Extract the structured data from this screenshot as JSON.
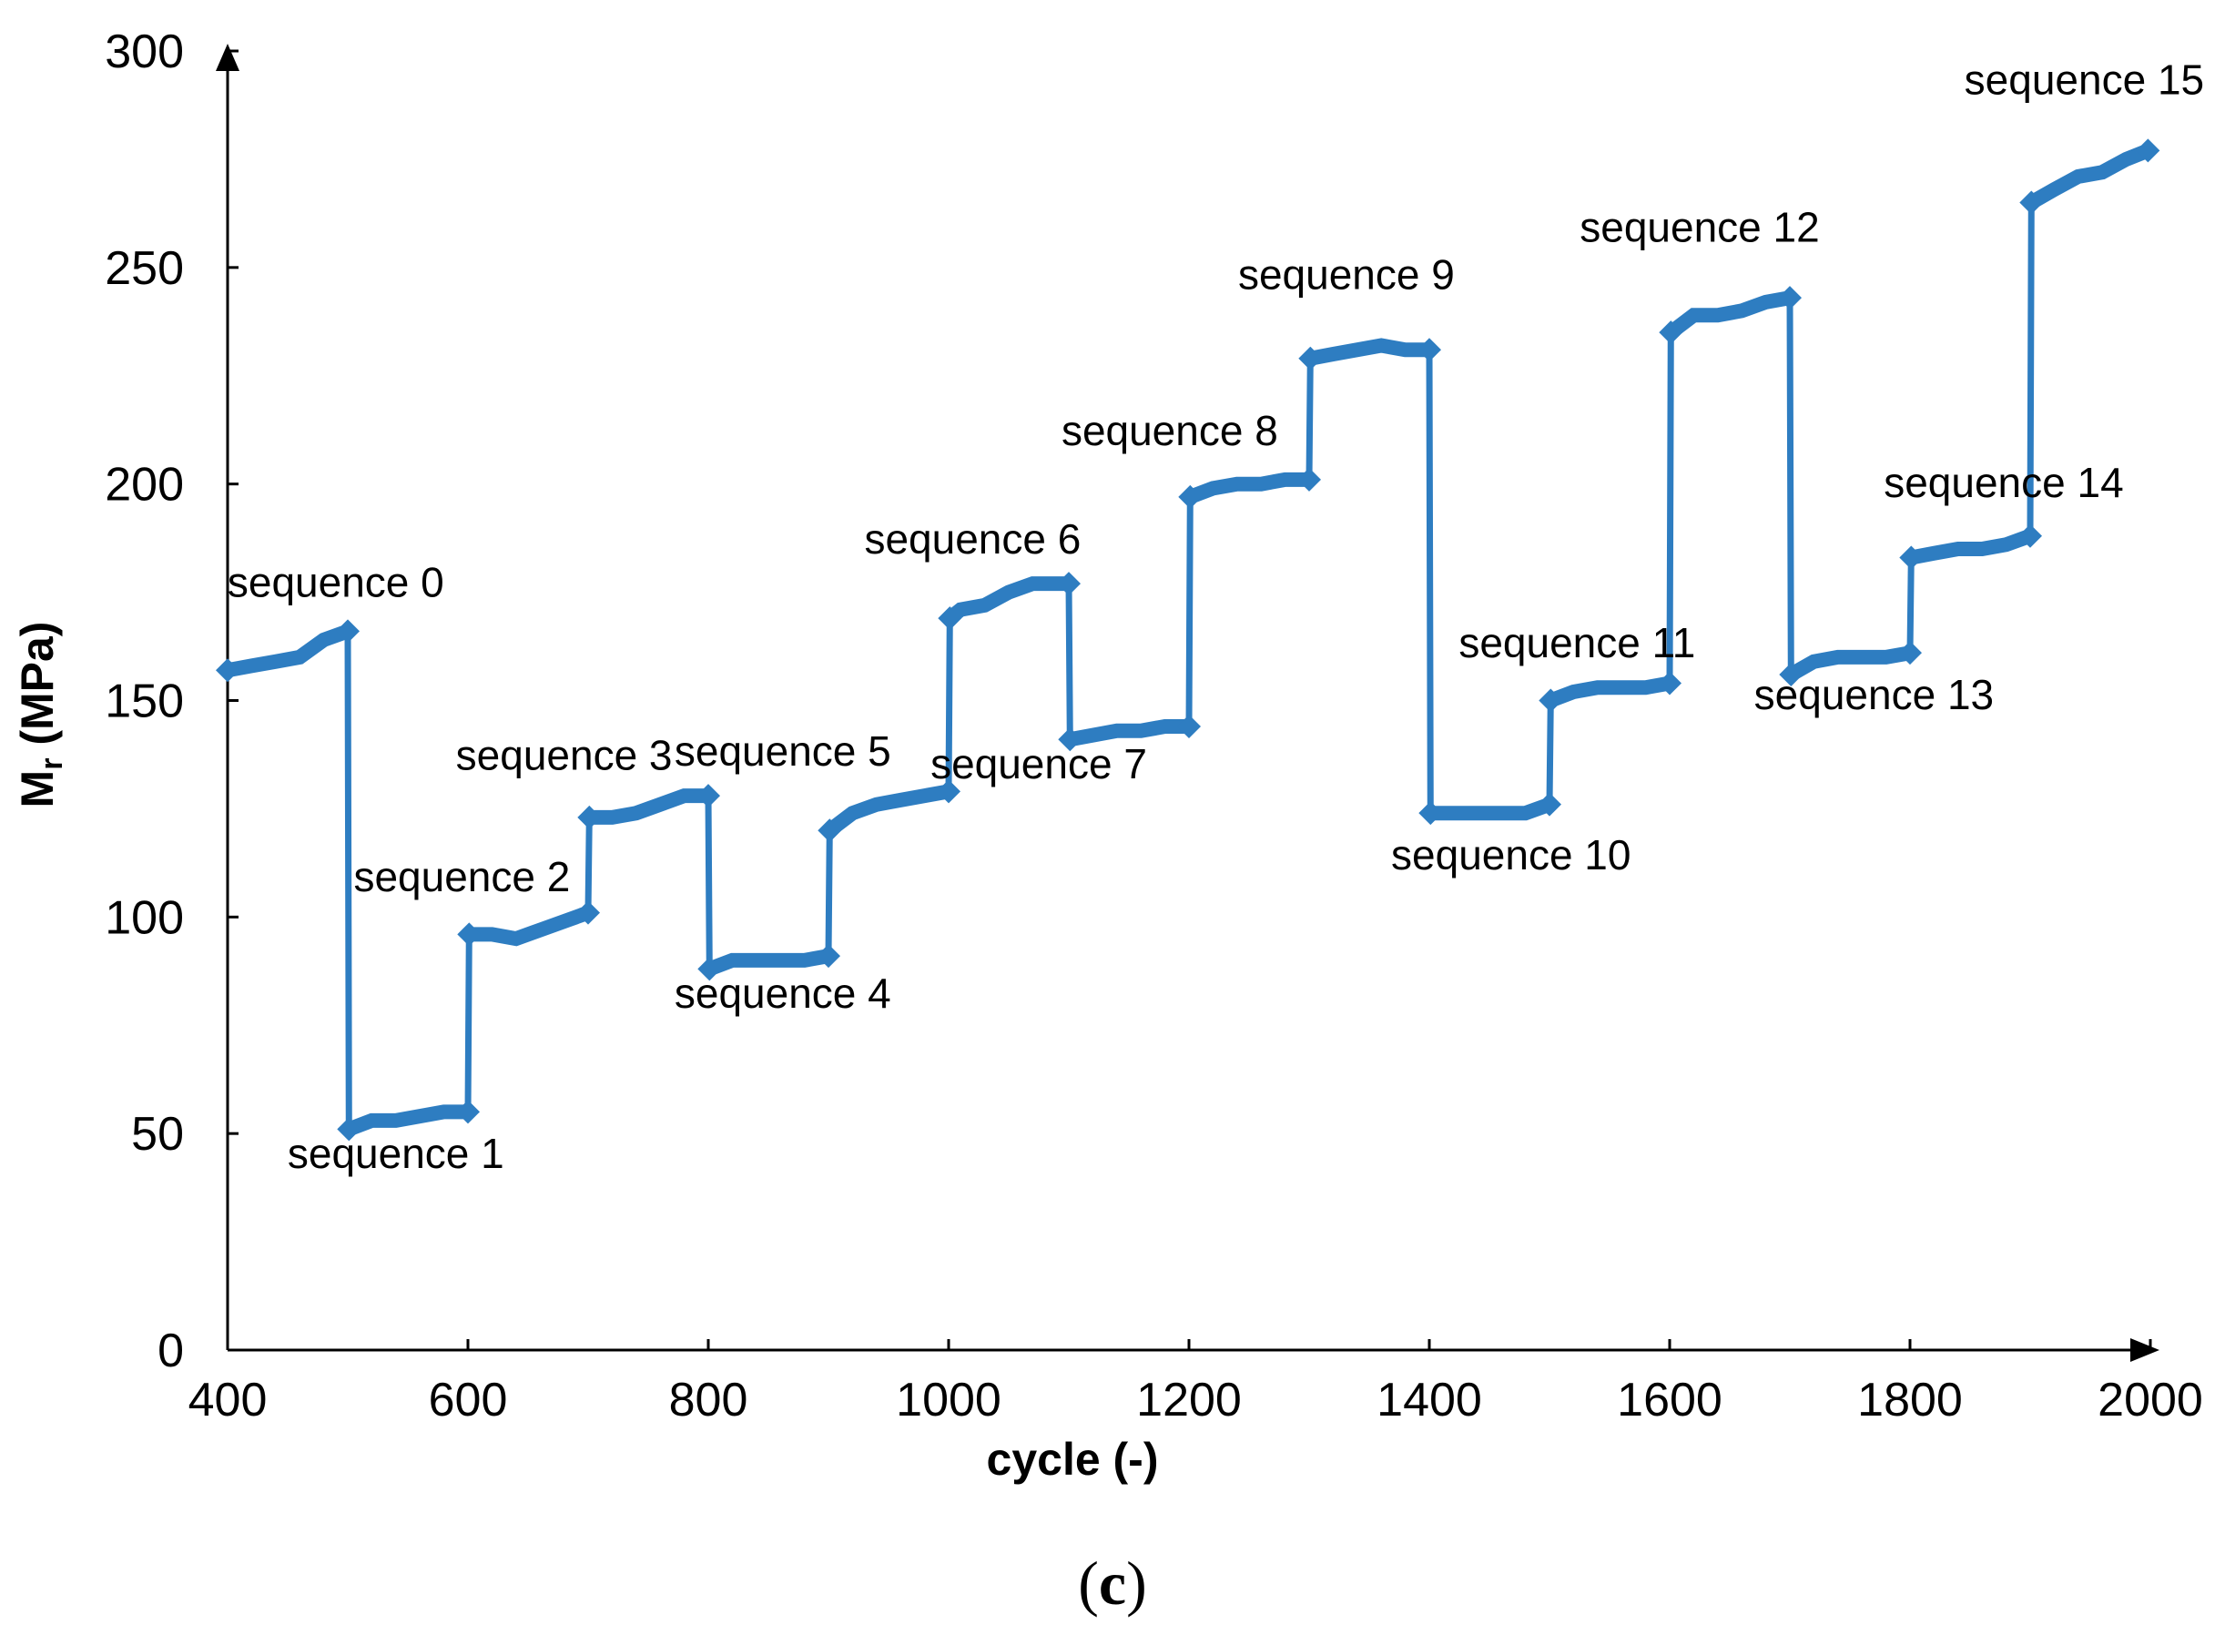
{
  "chart_data": {
    "type": "line",
    "title": "",
    "xlabel": "cycle (-)",
    "ylabel_main": "M",
    "ylabel_sub": "r",
    "ylabel_unit": " (MPa)",
    "xlim": [
      400,
      2000
    ],
    "ylim": [
      0,
      300
    ],
    "xticks": [
      400,
      600,
      800,
      1000,
      1200,
      1400,
      1600,
      1800,
      2000
    ],
    "yticks": [
      0,
      50,
      100,
      150,
      200,
      250,
      300
    ],
    "series_color": "#2e7dc1",
    "sequences": [
      {
        "label": "sequence 0",
        "x": [
          400,
          420,
          440,
          460,
          480,
          500
        ],
        "y": [
          157,
          158,
          159,
          160,
          164,
          166
        ],
        "label_x": 490,
        "label_y": 174
      },
      {
        "label": "sequence 1",
        "x": [
          501,
          520,
          540,
          560,
          580,
          600
        ],
        "y": [
          51,
          53,
          53,
          54,
          55,
          55
        ],
        "label_x": 540,
        "label_y": 42
      },
      {
        "label": "sequence 2",
        "x": [
          601,
          620,
          640,
          660,
          680,
          700
        ],
        "y": [
          96,
          96,
          95,
          97,
          99,
          101
        ],
        "label_x": 595,
        "label_y": 106
      },
      {
        "label": "sequence 3",
        "x": [
          701,
          720,
          740,
          760,
          780,
          800
        ],
        "y": [
          123,
          123,
          124,
          126,
          128,
          128
        ],
        "label_x": 680,
        "label_y": 134
      },
      {
        "label": "sequence 4",
        "x": [
          801,
          820,
          840,
          860,
          880,
          900
        ],
        "y": [
          88,
          90,
          90,
          90,
          90,
          91
        ],
        "label_x": 862,
        "label_y": 79
      },
      {
        "label": "sequence 5",
        "x": [
          901,
          920,
          940,
          960,
          980,
          1000
        ],
        "y": [
          120,
          124,
          126,
          127,
          128,
          129
        ],
        "label_x": 862,
        "label_y": 135
      },
      {
        "label": "sequence 6",
        "x": [
          1001,
          1010,
          1030,
          1050,
          1070,
          1100
        ],
        "y": [
          169,
          171,
          172,
          175,
          177,
          177
        ],
        "label_x": 1020,
        "label_y": 184
      },
      {
        "label": "sequence 7",
        "x": [
          1101,
          1120,
          1140,
          1160,
          1180,
          1200
        ],
        "y": [
          141,
          142,
          143,
          143,
          144,
          144
        ],
        "label_x": 1075,
        "label_y": 132
      },
      {
        "label": "sequence 8",
        "x": [
          1201,
          1220,
          1240,
          1260,
          1280,
          1300
        ],
        "y": [
          197,
          199,
          200,
          200,
          201,
          201
        ],
        "label_x": 1184,
        "label_y": 209
      },
      {
        "label": "sequence 9",
        "x": [
          1301,
          1320,
          1340,
          1360,
          1380,
          1400
        ],
        "y": [
          229,
          230,
          231,
          232,
          231,
          231
        ],
        "label_x": 1331,
        "label_y": 245
      },
      {
        "label": "sequence 10",
        "x": [
          1401,
          1420,
          1440,
          1460,
          1480,
          1500
        ],
        "y": [
          124,
          124,
          124,
          124,
          124,
          126
        ],
        "label_x": 1468,
        "label_y": 111
      },
      {
        "label": "sequence 11",
        "x": [
          1501,
          1520,
          1540,
          1560,
          1580,
          1600
        ],
        "y": [
          150,
          152,
          153,
          153,
          153,
          154
        ],
        "label_x": 1523,
        "label_y": 160
      },
      {
        "label": "sequence 12",
        "x": [
          1601,
          1620,
          1640,
          1660,
          1680,
          1700
        ],
        "y": [
          235,
          239,
          239,
          240,
          242,
          243
        ],
        "label_x": 1625,
        "label_y": 256
      },
      {
        "label": "sequence 13",
        "x": [
          1701,
          1720,
          1740,
          1760,
          1780,
          1800
        ],
        "y": [
          156,
          159,
          160,
          160,
          160,
          161
        ],
        "label_x": 1770,
        "label_y": 148
      },
      {
        "label": "sequence 14",
        "x": [
          1801,
          1820,
          1840,
          1860,
          1880,
          1900
        ],
        "y": [
          183,
          184,
          185,
          185,
          186,
          188
        ],
        "label_x": 1878,
        "label_y": 197
      },
      {
        "label": "sequence 15",
        "x": [
          1901,
          1920,
          1940,
          1960,
          1980,
          1998
        ],
        "y": [
          265,
          268,
          271,
          272,
          275,
          277
        ],
        "label_x": 1945,
        "label_y": 290
      }
    ]
  },
  "caption": {
    "open": "(",
    "letter": "c",
    "close": ")"
  }
}
